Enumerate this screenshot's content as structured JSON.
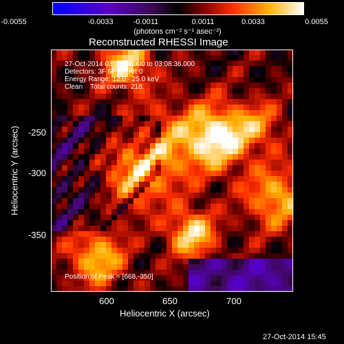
{
  "colorbar": {
    "tick_labels": [
      "-0.0055",
      "-0.0033",
      "-0.0011",
      "0.0011",
      "0.0033",
      "0.0055"
    ],
    "units_label": "(photons cm⁻² s⁻¹ asec⁻²)",
    "range": [
      -0.0055,
      0.0055
    ],
    "colormap": [
      "#0000ff",
      "#5a00c8",
      "#3a0a50",
      "#000000",
      "#800000",
      "#ff3000",
      "#ffb000",
      "#ffffff"
    ]
  },
  "plot": {
    "title": "Reconstructed RHESSI Image",
    "annotations": {
      "time_range": "27-Oct-2014 03:08:24.000 to 03:08:36.000",
      "detectors": "Detectors: 3F 6F 8F, Att 0",
      "energy": "Energy Range: 12.0 - 25.0 keV",
      "algorithm": "Clean    Total counts: 218.",
      "peak": "Position of Peak = [668,-350]"
    },
    "x_axis": {
      "label": "Heliocentric X (arcsec)",
      "ticks": [
        "600",
        "650",
        "700"
      ],
      "range": [
        556,
        747
      ]
    },
    "y_axis": {
      "label": "Heliocentric Y (arcsec)",
      "ticks": [
        "-250",
        "-300",
        "-350"
      ],
      "range": [
        -395,
        -200
      ]
    }
  },
  "footer": {
    "timestamp": "27-Oct-2014 15:45"
  }
}
